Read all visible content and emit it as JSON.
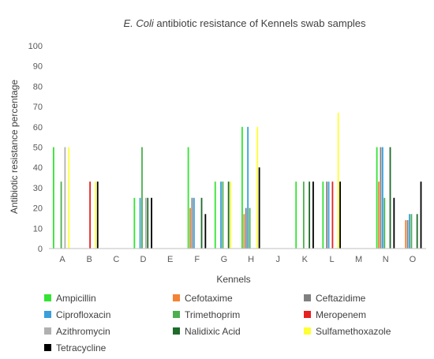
{
  "chart_data": {
    "type": "bar",
    "title_italic": "E. Coli",
    "title_rest": " antibiotic resistance of Kennels swab samples",
    "xlabel": "Kennels",
    "ylabel": "Antibiotic resistance percentage",
    "ylim": [
      0,
      100
    ],
    "yticks": [
      0,
      10,
      20,
      30,
      40,
      50,
      60,
      70,
      80,
      90,
      100
    ],
    "grid": false,
    "legend_position": "bottom",
    "categories": [
      "A",
      "B",
      "C",
      "D",
      "E",
      "F",
      "G",
      "H",
      "J",
      "K",
      "L",
      "M",
      "N",
      "O"
    ],
    "series": [
      {
        "name": "Ampicillin",
        "color": "#33e433",
        "values": [
          50,
          0,
          0,
          25,
          0,
          50,
          33,
          60,
          0,
          33,
          33,
          0,
          50,
          0
        ]
      },
      {
        "name": "Cefotaxime",
        "color": "#f58235",
        "values": [
          0,
          0,
          0,
          0,
          0,
          20,
          0,
          17,
          0,
          0,
          0,
          0,
          33,
          14
        ]
      },
      {
        "name": "Ceftazidime",
        "color": "#808080",
        "values": [
          0,
          0,
          0,
          0,
          0,
          25,
          0,
          20,
          0,
          0,
          33,
          0,
          50,
          14
        ]
      },
      {
        "name": "Ciprofloxacin",
        "color": "#3a9fdb",
        "values": [
          0,
          0,
          0,
          25,
          0,
          25,
          33,
          60,
          0,
          0,
          33,
          0,
          50,
          17
        ]
      },
      {
        "name": "Trimethoprim",
        "color": "#4caf50",
        "values": [
          33,
          0,
          0,
          50,
          0,
          0,
          33,
          20,
          0,
          33,
          0,
          0,
          25,
          17
        ]
      },
      {
        "name": "Meropenem",
        "color": "#e82020",
        "values": [
          0,
          33,
          0,
          0,
          0,
          0,
          0,
          0,
          0,
          0,
          33,
          0,
          0,
          0
        ]
      },
      {
        "name": "Azithromycin",
        "color": "#b0b0b0",
        "values": [
          50,
          0,
          0,
          25,
          0,
          0,
          0,
          0,
          0,
          0,
          0,
          0,
          0,
          0
        ]
      },
      {
        "name": "Nalidixic Acid",
        "color": "#1e6b2a",
        "values": [
          0,
          0,
          0,
          25,
          0,
          25,
          33,
          0,
          0,
          33,
          0,
          0,
          50,
          17
        ]
      },
      {
        "name": "Sulfamethoxazole",
        "color": "#ffff33",
        "values": [
          50,
          33,
          0,
          0,
          0,
          0,
          33,
          60,
          0,
          0,
          67,
          0,
          0,
          0
        ]
      },
      {
        "name": "Tetracycline",
        "color": "#000000",
        "values": [
          0,
          33,
          0,
          25,
          0,
          17,
          0,
          40,
          0,
          33,
          33,
          0,
          25,
          33
        ]
      }
    ]
  }
}
